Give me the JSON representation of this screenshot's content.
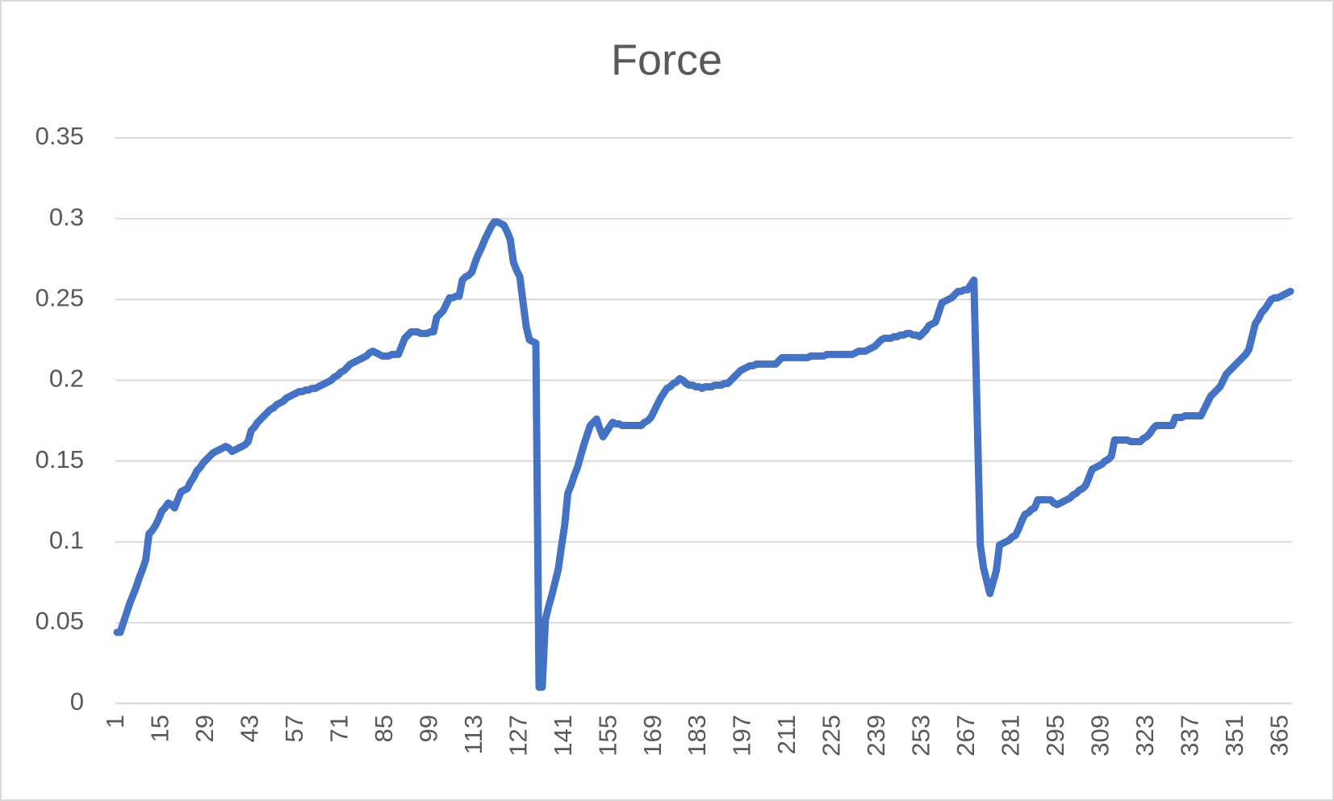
{
  "chart_data": {
    "type": "line",
    "title": "Force",
    "categories": [
      1,
      null,
      null,
      null,
      null,
      null,
      null,
      null,
      null,
      null,
      null,
      null,
      null,
      null,
      15,
      null,
      null,
      null,
      null,
      null,
      null,
      null,
      null,
      null,
      null,
      null,
      null,
      null,
      29,
      null,
      null,
      null,
      null,
      null,
      null,
      null,
      null,
      null,
      null,
      null,
      null,
      null,
      43,
      null,
      null,
      null,
      null,
      null,
      null,
      null,
      null,
      null,
      null,
      null,
      null,
      null,
      57,
      null,
      null,
      null,
      null,
      null,
      null,
      null,
      null,
      null,
      null,
      null,
      null,
      null,
      71,
      null,
      null,
      null,
      null,
      null,
      null,
      null,
      null,
      null,
      null,
      null,
      null,
      null,
      85,
      null,
      null,
      null,
      null,
      null,
      null,
      null,
      null,
      null,
      null,
      null,
      null,
      null,
      99,
      null,
      null,
      null,
      null,
      null,
      null,
      null,
      null,
      null,
      null,
      null,
      null,
      null,
      113,
      null,
      null,
      null,
      null,
      null,
      null,
      null,
      null,
      null,
      null,
      null,
      null,
      null,
      127,
      null,
      null,
      null,
      null,
      null,
      null,
      null,
      null,
      null,
      null,
      null,
      null,
      null,
      141,
      null,
      null,
      null,
      null,
      null,
      null,
      null,
      null,
      null,
      null,
      null,
      null,
      null,
      155,
      null,
      null,
      null,
      null,
      null,
      null,
      null,
      null,
      null,
      null,
      null,
      null,
      null,
      169,
      null,
      null,
      null,
      null,
      null,
      null,
      null,
      null,
      null,
      null,
      null,
      null,
      null,
      183,
      null,
      null,
      null,
      null,
      null,
      null,
      null,
      null,
      null,
      null,
      null,
      null,
      null,
      197,
      null,
      null,
      null,
      null,
      null,
      null,
      null,
      null,
      null,
      null,
      null,
      null,
      null,
      211,
      null,
      null,
      null,
      null,
      null,
      null,
      null,
      null,
      null,
      null,
      null,
      null,
      null,
      225,
      null,
      null,
      null,
      null,
      null,
      null,
      null,
      null,
      null,
      null,
      null,
      null,
      null,
      239,
      null,
      null,
      null,
      null,
      null,
      null,
      null,
      null,
      null,
      null,
      null,
      null,
      null,
      253,
      null,
      null,
      null,
      null,
      null,
      null,
      null,
      null,
      null,
      null,
      null,
      null,
      null,
      267,
      null,
      null,
      null,
      null,
      null,
      null,
      null,
      null,
      null,
      null,
      null,
      null,
      null,
      281,
      null,
      null,
      null,
      null,
      null,
      null,
      null,
      null,
      null,
      null,
      null,
      null,
      null,
      295,
      null,
      null,
      null,
      null,
      null,
      null,
      null,
      null,
      null,
      null,
      null,
      null,
      null,
      309,
      null,
      null,
      null,
      null,
      null,
      null,
      null,
      null,
      null,
      null,
      null,
      null,
      null,
      323,
      null,
      null,
      null,
      null,
      null,
      null,
      null,
      null,
      null,
      null,
      null,
      null,
      null,
      337,
      null,
      null,
      null,
      null,
      null,
      null,
      null,
      null,
      null,
      null,
      null,
      null,
      null,
      351,
      null,
      null,
      null,
      null,
      null,
      null,
      null,
      null,
      null,
      null,
      null,
      null,
      null,
      365,
      null,
      null,
      null
    ],
    "values": [
      0.044,
      0.044,
      0.05,
      0.056,
      0.062,
      0.067,
      0.072,
      0.078,
      0.083,
      0.089,
      0.105,
      0.107,
      0.11,
      0.114,
      0.119,
      0.121,
      0.124,
      0.123,
      0.121,
      0.126,
      0.131,
      0.132,
      0.133,
      0.137,
      0.14,
      0.144,
      0.146,
      0.149,
      0.151,
      0.153,
      0.155,
      0.156,
      0.157,
      0.158,
      0.159,
      0.158,
      0.156,
      0.157,
      0.158,
      0.159,
      0.16,
      0.162,
      0.169,
      0.171,
      0.174,
      0.176,
      0.178,
      0.18,
      0.182,
      0.183,
      0.185,
      0.186,
      0.187,
      0.189,
      0.19,
      0.191,
      0.192,
      0.193,
      0.193,
      0.194,
      0.194,
      0.195,
      0.195,
      0.196,
      0.197,
      0.198,
      0.199,
      0.2,
      0.202,
      0.203,
      0.205,
      0.206,
      0.208,
      0.21,
      0.211,
      0.212,
      0.213,
      0.214,
      0.215,
      0.217,
      0.218,
      0.217,
      0.216,
      0.215,
      0.215,
      0.215,
      0.216,
      0.216,
      0.216,
      0.221,
      0.226,
      0.228,
      0.23,
      0.23,
      0.23,
      0.229,
      0.229,
      0.229,
      0.23,
      0.23,
      0.239,
      0.241,
      0.243,
      0.247,
      0.251,
      0.251,
      0.252,
      0.252,
      0.262,
      0.264,
      0.265,
      0.267,
      0.273,
      0.278,
      0.282,
      0.287,
      0.291,
      0.295,
      0.298,
      0.298,
      0.297,
      0.296,
      0.292,
      0.287,
      0.273,
      0.268,
      0.264,
      0.248,
      0.233,
      0.225,
      0.224,
      0.223,
      0.01,
      0.01,
      0.052,
      0.06,
      0.067,
      0.075,
      0.083,
      0.097,
      0.11,
      0.13,
      0.135,
      0.141,
      0.146,
      0.153,
      0.16,
      0.166,
      0.172,
      0.174,
      0.176,
      0.17,
      0.165,
      0.168,
      0.171,
      0.174,
      0.173,
      0.173,
      0.172,
      0.172,
      0.172,
      0.172,
      0.172,
      0.172,
      0.172,
      0.174,
      0.175,
      0.177,
      0.181,
      0.185,
      0.189,
      0.192,
      0.195,
      0.196,
      0.198,
      0.199,
      0.201,
      0.2,
      0.198,
      0.197,
      0.197,
      0.196,
      0.196,
      0.195,
      0.196,
      0.196,
      0.196,
      0.197,
      0.197,
      0.197,
      0.198,
      0.198,
      0.2,
      0.202,
      0.204,
      0.206,
      0.207,
      0.208,
      0.209,
      0.209,
      0.21,
      0.21,
      0.21,
      0.21,
      0.21,
      0.21,
      0.21,
      0.212,
      0.214,
      0.214,
      0.214,
      0.214,
      0.214,
      0.214,
      0.214,
      0.214,
      0.214,
      0.215,
      0.215,
      0.215,
      0.215,
      0.215,
      0.216,
      0.216,
      0.216,
      0.216,
      0.216,
      0.216,
      0.216,
      0.216,
      0.216,
      0.217,
      0.218,
      0.218,
      0.218,
      0.219,
      0.22,
      0.221,
      0.223,
      0.225,
      0.226,
      0.226,
      0.226,
      0.227,
      0.227,
      0.228,
      0.228,
      0.229,
      0.229,
      0.228,
      0.228,
      0.227,
      0.229,
      0.231,
      0.234,
      0.235,
      0.236,
      0.242,
      0.248,
      0.249,
      0.25,
      0.251,
      0.253,
      0.255,
      0.255,
      0.256,
      0.256,
      0.259,
      0.262,
      0.18,
      0.098,
      0.084,
      0.076,
      0.068,
      0.075,
      0.082,
      0.098,
      0.099,
      0.1,
      0.101,
      0.103,
      0.104,
      0.108,
      0.113,
      0.117,
      0.118,
      0.12,
      0.121,
      0.126,
      0.126,
      0.126,
      0.126,
      0.126,
      0.124,
      0.123,
      0.124,
      0.125,
      0.126,
      0.127,
      0.129,
      0.13,
      0.132,
      0.133,
      0.135,
      0.14,
      0.145,
      0.146,
      0.147,
      0.148,
      0.15,
      0.151,
      0.153,
      0.163,
      0.163,
      0.163,
      0.163,
      0.163,
      0.162,
      0.162,
      0.162,
      0.162,
      0.164,
      0.165,
      0.167,
      0.17,
      0.172,
      0.172,
      0.172,
      0.172,
      0.172,
      0.172,
      0.177,
      0.177,
      0.177,
      0.178,
      0.178,
      0.178,
      0.178,
      0.178,
      0.178,
      0.182,
      0.186,
      0.19,
      0.192,
      0.194,
      0.196,
      0.2,
      0.204,
      0.206,
      0.208,
      0.21,
      0.212,
      0.214,
      0.216,
      0.219,
      0.227,
      0.235,
      0.238,
      0.242,
      0.244,
      0.247,
      0.25,
      0.251,
      0.251,
      0.252,
      0.253,
      0.254,
      0.255
    ],
    "color": "#4472c4",
    "ylim": [
      0,
      0.35
    ],
    "yticks": [
      0,
      0.05,
      0.1,
      0.15,
      0.2,
      0.25,
      0.3,
      0.35
    ],
    "grid": true
  }
}
